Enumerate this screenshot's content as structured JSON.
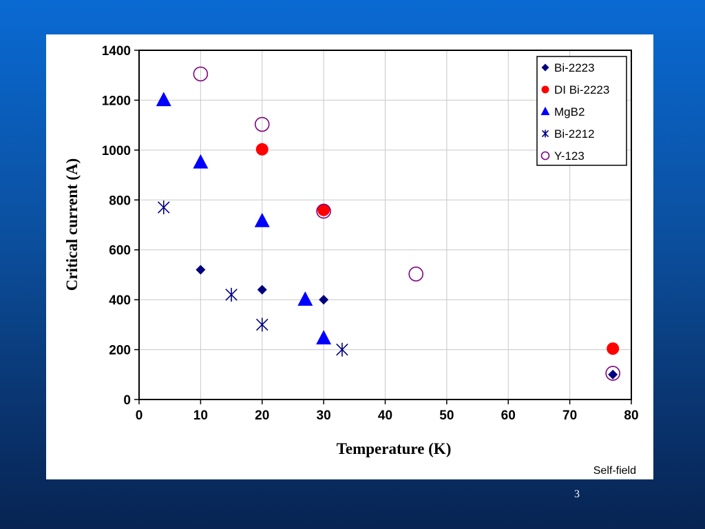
{
  "slide": {
    "note": "Self-field",
    "page_number": "3"
  },
  "chart_data": {
    "type": "scatter",
    "title": "",
    "xlabel": "Temperature (K)",
    "ylabel": "Critical current (A)",
    "xlim": [
      0,
      80
    ],
    "ylim": [
      0,
      1400
    ],
    "xticks": [
      0,
      10,
      20,
      30,
      40,
      50,
      60,
      70,
      80
    ],
    "yticks": [
      0,
      200,
      400,
      600,
      800,
      1000,
      1200,
      1400
    ],
    "grid": true,
    "legend_position": "top-right",
    "series": [
      {
        "name": "Bi-2223",
        "marker": "diamond",
        "color": "#000080",
        "points": [
          [
            10,
            520
          ],
          [
            20,
            440
          ],
          [
            30,
            400
          ],
          [
            77,
            100
          ]
        ]
      },
      {
        "name": "DI Bi-2223",
        "marker": "circle-filled",
        "color": "#ff0000",
        "points": [
          [
            20,
            1003
          ],
          [
            30,
            760
          ],
          [
            77,
            204
          ]
        ]
      },
      {
        "name": "MgB2",
        "marker": "triangle",
        "color": "#0000ff",
        "points": [
          [
            4,
            1200
          ],
          [
            10,
            950
          ],
          [
            20,
            715
          ],
          [
            27,
            400
          ],
          [
            30,
            245
          ]
        ]
      },
      {
        "name": "Bi-2212",
        "marker": "asterisk",
        "color": "#000080",
        "points": [
          [
            4,
            770
          ],
          [
            15,
            420
          ],
          [
            20,
            300
          ],
          [
            33,
            200
          ]
        ]
      },
      {
        "name": "Y-123",
        "marker": "circle-open",
        "color": "#800080",
        "points": [
          [
            10,
            1305
          ],
          [
            20,
            1103
          ],
          [
            30,
            755
          ],
          [
            45,
            503
          ],
          [
            77,
            105
          ]
        ]
      }
    ]
  }
}
